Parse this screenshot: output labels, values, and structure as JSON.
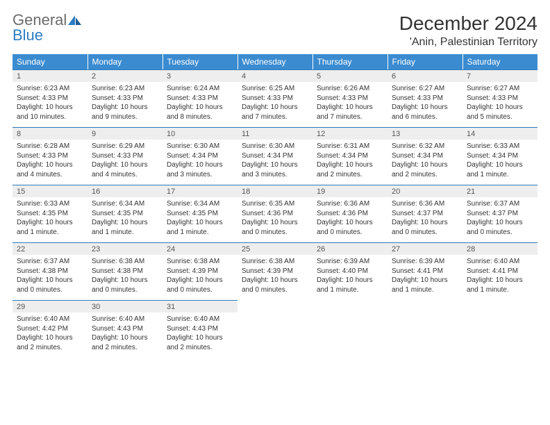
{
  "brand": {
    "word1": "General",
    "word2": "Blue"
  },
  "title": "December 2024",
  "location": "'Anin, Palestinian Territory",
  "colors": {
    "header_bg": "#3a8bd0",
    "header_text": "#ffffff",
    "daynum_bg": "#eeeeee",
    "daynum_border": "#2e7ab8",
    "body_text": "#333333",
    "logo_gray": "#6b6b6b",
    "logo_blue": "#2b7dc4",
    "page_bg": "#ffffff"
  },
  "typography": {
    "title_fontsize": 28,
    "location_fontsize": 16,
    "dayhead_fontsize": 12,
    "daynum_fontsize": 11,
    "body_fontsize": 10
  },
  "day_headers": [
    "Sunday",
    "Monday",
    "Tuesday",
    "Wednesday",
    "Thursday",
    "Friday",
    "Saturday"
  ],
  "weeks": [
    [
      {
        "n": "1",
        "sr": "Sunrise: 6:23 AM",
        "ss": "Sunset: 4:33 PM",
        "d1": "Daylight: 10 hours",
        "d2": "and 10 minutes."
      },
      {
        "n": "2",
        "sr": "Sunrise: 6:23 AM",
        "ss": "Sunset: 4:33 PM",
        "d1": "Daylight: 10 hours",
        "d2": "and 9 minutes."
      },
      {
        "n": "3",
        "sr": "Sunrise: 6:24 AM",
        "ss": "Sunset: 4:33 PM",
        "d1": "Daylight: 10 hours",
        "d2": "and 8 minutes."
      },
      {
        "n": "4",
        "sr": "Sunrise: 6:25 AM",
        "ss": "Sunset: 4:33 PM",
        "d1": "Daylight: 10 hours",
        "d2": "and 7 minutes."
      },
      {
        "n": "5",
        "sr": "Sunrise: 6:26 AM",
        "ss": "Sunset: 4:33 PM",
        "d1": "Daylight: 10 hours",
        "d2": "and 7 minutes."
      },
      {
        "n": "6",
        "sr": "Sunrise: 6:27 AM",
        "ss": "Sunset: 4:33 PM",
        "d1": "Daylight: 10 hours",
        "d2": "and 6 minutes."
      },
      {
        "n": "7",
        "sr": "Sunrise: 6:27 AM",
        "ss": "Sunset: 4:33 PM",
        "d1": "Daylight: 10 hours",
        "d2": "and 5 minutes."
      }
    ],
    [
      {
        "n": "8",
        "sr": "Sunrise: 6:28 AM",
        "ss": "Sunset: 4:33 PM",
        "d1": "Daylight: 10 hours",
        "d2": "and 4 minutes."
      },
      {
        "n": "9",
        "sr": "Sunrise: 6:29 AM",
        "ss": "Sunset: 4:33 PM",
        "d1": "Daylight: 10 hours",
        "d2": "and 4 minutes."
      },
      {
        "n": "10",
        "sr": "Sunrise: 6:30 AM",
        "ss": "Sunset: 4:34 PM",
        "d1": "Daylight: 10 hours",
        "d2": "and 3 minutes."
      },
      {
        "n": "11",
        "sr": "Sunrise: 6:30 AM",
        "ss": "Sunset: 4:34 PM",
        "d1": "Daylight: 10 hours",
        "d2": "and 3 minutes."
      },
      {
        "n": "12",
        "sr": "Sunrise: 6:31 AM",
        "ss": "Sunset: 4:34 PM",
        "d1": "Daylight: 10 hours",
        "d2": "and 2 minutes."
      },
      {
        "n": "13",
        "sr": "Sunrise: 6:32 AM",
        "ss": "Sunset: 4:34 PM",
        "d1": "Daylight: 10 hours",
        "d2": "and 2 minutes."
      },
      {
        "n": "14",
        "sr": "Sunrise: 6:33 AM",
        "ss": "Sunset: 4:34 PM",
        "d1": "Daylight: 10 hours",
        "d2": "and 1 minute."
      }
    ],
    [
      {
        "n": "15",
        "sr": "Sunrise: 6:33 AM",
        "ss": "Sunset: 4:35 PM",
        "d1": "Daylight: 10 hours",
        "d2": "and 1 minute."
      },
      {
        "n": "16",
        "sr": "Sunrise: 6:34 AM",
        "ss": "Sunset: 4:35 PM",
        "d1": "Daylight: 10 hours",
        "d2": "and 1 minute."
      },
      {
        "n": "17",
        "sr": "Sunrise: 6:34 AM",
        "ss": "Sunset: 4:35 PM",
        "d1": "Daylight: 10 hours",
        "d2": "and 1 minute."
      },
      {
        "n": "18",
        "sr": "Sunrise: 6:35 AM",
        "ss": "Sunset: 4:36 PM",
        "d1": "Daylight: 10 hours",
        "d2": "and 0 minutes."
      },
      {
        "n": "19",
        "sr": "Sunrise: 6:36 AM",
        "ss": "Sunset: 4:36 PM",
        "d1": "Daylight: 10 hours",
        "d2": "and 0 minutes."
      },
      {
        "n": "20",
        "sr": "Sunrise: 6:36 AM",
        "ss": "Sunset: 4:37 PM",
        "d1": "Daylight: 10 hours",
        "d2": "and 0 minutes."
      },
      {
        "n": "21",
        "sr": "Sunrise: 6:37 AM",
        "ss": "Sunset: 4:37 PM",
        "d1": "Daylight: 10 hours",
        "d2": "and 0 minutes."
      }
    ],
    [
      {
        "n": "22",
        "sr": "Sunrise: 6:37 AM",
        "ss": "Sunset: 4:38 PM",
        "d1": "Daylight: 10 hours",
        "d2": "and 0 minutes."
      },
      {
        "n": "23",
        "sr": "Sunrise: 6:38 AM",
        "ss": "Sunset: 4:38 PM",
        "d1": "Daylight: 10 hours",
        "d2": "and 0 minutes."
      },
      {
        "n": "24",
        "sr": "Sunrise: 6:38 AM",
        "ss": "Sunset: 4:39 PM",
        "d1": "Daylight: 10 hours",
        "d2": "and 0 minutes."
      },
      {
        "n": "25",
        "sr": "Sunrise: 6:38 AM",
        "ss": "Sunset: 4:39 PM",
        "d1": "Daylight: 10 hours",
        "d2": "and 0 minutes."
      },
      {
        "n": "26",
        "sr": "Sunrise: 6:39 AM",
        "ss": "Sunset: 4:40 PM",
        "d1": "Daylight: 10 hours",
        "d2": "and 1 minute."
      },
      {
        "n": "27",
        "sr": "Sunrise: 6:39 AM",
        "ss": "Sunset: 4:41 PM",
        "d1": "Daylight: 10 hours",
        "d2": "and 1 minute."
      },
      {
        "n": "28",
        "sr": "Sunrise: 6:40 AM",
        "ss": "Sunset: 4:41 PM",
        "d1": "Daylight: 10 hours",
        "d2": "and 1 minute."
      }
    ],
    [
      {
        "n": "29",
        "sr": "Sunrise: 6:40 AM",
        "ss": "Sunset: 4:42 PM",
        "d1": "Daylight: 10 hours",
        "d2": "and 2 minutes."
      },
      {
        "n": "30",
        "sr": "Sunrise: 6:40 AM",
        "ss": "Sunset: 4:43 PM",
        "d1": "Daylight: 10 hours",
        "d2": "and 2 minutes."
      },
      {
        "n": "31",
        "sr": "Sunrise: 6:40 AM",
        "ss": "Sunset: 4:43 PM",
        "d1": "Daylight: 10 hours",
        "d2": "and 2 minutes."
      },
      {
        "empty": true
      },
      {
        "empty": true
      },
      {
        "empty": true
      },
      {
        "empty": true
      }
    ]
  ]
}
